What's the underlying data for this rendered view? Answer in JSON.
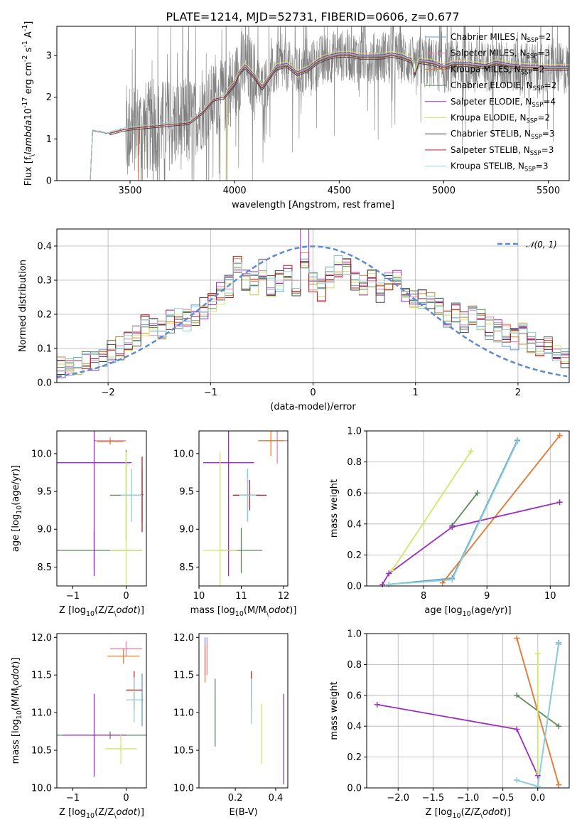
{
  "title": "PLATE=1214, MJD=52731, FIBERID=0606, z=0.677",
  "legend_models": [
    {
      "name": "Chabrier MILES, N$_{SSP}$=2",
      "text": "Chabrier MILES, N",
      "n": "2",
      "color": "#5f9fce"
    },
    {
      "name": "Salpeter MILES, N$_{SSP}$=3",
      "text": "Salpeter MILES, N",
      "n": "3",
      "color": "#ef80b7"
    },
    {
      "name": "Kroupa MILES, N$_{SSP}$=2",
      "text": "Kroupa MILES, N",
      "n": "2",
      "color": "#e07f32"
    },
    {
      "name": "Chabrier ELODIE, N$_{SSP}$=2",
      "text": "Chabrier ELODIE, N",
      "n": "2",
      "color": "#5a8a5a"
    },
    {
      "name": "Salpeter ELODIE, N$_{SSP}$=4",
      "text": "Salpeter ELODIE, N",
      "n": "4",
      "color": "#9b2ec0"
    },
    {
      "name": "Kroupa ELODIE, N$_{SSP}$=2",
      "text": "Kroupa ELODIE, N",
      "n": "2",
      "color": "#d4e664"
    },
    {
      "name": "Chabrier STELIB, N$_{SSP}$=3",
      "text": "Chabrier STELIB, N",
      "n": "3",
      "color": "#444444"
    },
    {
      "name": "Salpeter STELIB, N$_{SSP}$=3",
      "text": "Salpeter STELIB, N",
      "n": "3",
      "color": "#b42020"
    },
    {
      "name": "Kroupa STELIB, N$_{SSP}$=3",
      "text": "Kroupa STELIB, N",
      "n": "3",
      "color": "#8fd0d6"
    }
  ],
  "legend_sub": "SSP",
  "colors": {
    "data": "#808080",
    "grid": "#b0b0b0",
    "normal": "#5b8ad6"
  },
  "chart_data": [
    {
      "id": "spectrum",
      "type": "line",
      "xlabel": "wavelength [Angstrom, rest frame]",
      "ylabel": "Flux [f$_\\lambda$10$^{-17}$ erg cm$^{-2}$ s$^{-1}$ A$^{-1}$]",
      "xlim": [
        3150,
        5600
      ],
      "ylim": [
        0,
        3.7
      ],
      "xticks": [
        3500,
        4000,
        4500,
        5000,
        5500
      ],
      "yticks": [
        0,
        1,
        2,
        3
      ],
      "grid": false,
      "legend": "right",
      "data_series": {
        "name": "data",
        "color": "#808080",
        "x_range": [
          3310,
          5600
        ],
        "noisy_from": 3480
      },
      "model_continuum": {
        "x": [
          3200,
          3310,
          3320,
          3400,
          3450,
          3500,
          3600,
          3700,
          3780,
          3850,
          3900,
          3950,
          4000,
          4020,
          4050,
          4100,
          4130,
          4200,
          4250,
          4300,
          4350,
          4400,
          4450,
          4500,
          4550,
          4600,
          4650,
          4700,
          4750,
          4800,
          4850,
          4860,
          4880,
          4950,
          5000,
          5050,
          5100,
          5150,
          5200,
          5250,
          5300,
          5350,
          5400,
          5450,
          5500
        ],
        "y": [
          0,
          0,
          1.2,
          1.13,
          1.2,
          1.25,
          1.3,
          1.35,
          1.38,
          1.65,
          1.95,
          2.0,
          2.3,
          2.55,
          2.72,
          2.45,
          2.2,
          2.7,
          2.75,
          2.55,
          2.65,
          2.85,
          2.95,
          3.0,
          3.0,
          2.95,
          2.95,
          2.95,
          3.0,
          2.95,
          2.85,
          2.5,
          2.85,
          2.8,
          2.7,
          2.78,
          2.78,
          2.75,
          2.72,
          2.8,
          2.75,
          2.72,
          2.7,
          2.7,
          2.68
        ]
      },
      "model_starts": {
        "MILES": 3540,
        "ELODIE": 3960,
        "STELIB": 3310
      }
    },
    {
      "id": "residuals",
      "type": "line",
      "xlabel": "(data-model)/error",
      "ylabel": "Normed distribution",
      "xlim": [
        -2.5,
        2.5
      ],
      "ylim": [
        0,
        0.45
      ],
      "xticks": [
        -2,
        -1,
        0,
        1,
        2
      ],
      "yticks": [
        0.0,
        0.1,
        0.2,
        0.3,
        0.4
      ],
      "grid": true,
      "normal_curve": {
        "name": "$\\mathcal{N}(0,1)$",
        "label": "𝒩(0, 1)",
        "mean": 0,
        "std": 1
      },
      "hist_base": [
        0.04,
        0.04,
        0.05,
        0.06,
        0.07,
        0.08,
        0.09,
        0.1,
        0.12,
        0.14,
        0.17,
        0.16,
        0.15,
        0.18,
        0.19,
        0.18,
        0.2,
        0.22,
        0.24,
        0.26,
        0.28,
        0.35,
        0.3,
        0.29,
        0.33,
        0.28,
        0.3,
        0.32,
        0.27,
        0.36,
        0.3,
        0.27,
        0.31,
        0.34,
        0.35,
        0.3,
        0.28,
        0.3,
        0.27,
        0.29,
        0.3,
        0.26,
        0.25,
        0.25,
        0.23,
        0.22,
        0.19,
        0.2,
        0.18,
        0.2,
        0.18,
        0.16,
        0.15,
        0.14,
        0.13,
        0.14,
        0.12,
        0.11,
        0.1,
        0.08,
        0.07
      ],
      "hist_range": [
        -2.5,
        2.5
      ]
    },
    {
      "id": "z-vs-age",
      "type": "scatter",
      "xlabel": "Z [log$_{10}$(Z/Z$_\\odot$)]",
      "ylabel": "age  [log$_{10}$(age/yr)]",
      "xlim": [
        -1.3,
        0.38
      ],
      "ylim": [
        8.25,
        10.3
      ],
      "xticks": [
        -1,
        0
      ],
      "yticks": [
        8.5,
        9.0,
        9.5,
        10.0
      ],
      "grid": false,
      "points": [
        {
          "model": 0,
          "x": 0.3,
          "y": 9.45,
          "xerr": 0.02,
          "yerr": 0.35
        },
        {
          "model": 1,
          "x": -0.3,
          "y": 10.17,
          "xerr": 0.3,
          "yerr": 0.05
        },
        {
          "model": 2,
          "x": -0.3,
          "y": 10.16,
          "xerr": 0.25,
          "yerr": 0.03
        },
        {
          "model": 3,
          "x": 0.0,
          "y": 9.45,
          "xerr": 0.3,
          "yerr": 0.6
        },
        {
          "model": 3,
          "x": -0.6,
          "y": 8.72,
          "xerr": 0.9,
          "yerr": 0.25
        },
        {
          "model": 4,
          "x": -0.6,
          "y": 9.88,
          "xerr": 0.7,
          "yerr": 1.5
        },
        {
          "model": 5,
          "x": 0.0,
          "y": 8.72,
          "xerr": 0.3,
          "yerr": 1.3
        },
        {
          "model": 7,
          "x": 0.3,
          "y": 9.46,
          "xerr": 0.02,
          "yerr": 0.5
        },
        {
          "model": 8,
          "x": 0.1,
          "y": 9.45,
          "xerr": 0.2,
          "yerr": 0.35
        }
      ]
    },
    {
      "id": "mass-vs-age",
      "type": "scatter",
      "xlabel": "mass [log$_{10}$(M/M$_\\odot$)]",
      "ylabel": "",
      "xlim": [
        10.0,
        12.1
      ],
      "ylim": [
        8.25,
        10.3
      ],
      "xticks": [
        10,
        11,
        12
      ],
      "yticks": [
        8.5,
        9.0,
        9.5,
        10.0
      ],
      "grid": false,
      "points": [
        {
          "model": 0,
          "x": 11.15,
          "y": 9.45,
          "xerr": 0.3,
          "yerr": 0.35
        },
        {
          "model": 1,
          "x": 11.85,
          "y": 10.17,
          "xerr": 0.3,
          "yerr": 0.3
        },
        {
          "model": 2,
          "x": 11.7,
          "y": 10.17,
          "xerr": 0.3,
          "yerr": 0.2
        },
        {
          "model": 3,
          "x": 11.0,
          "y": 8.72,
          "xerr": 0.5,
          "yerr": 0.3
        },
        {
          "model": 4,
          "x": 10.7,
          "y": 9.88,
          "xerr": 0.6,
          "yerr": 1.5
        },
        {
          "model": 5,
          "x": 10.5,
          "y": 8.72,
          "xerr": 0.4,
          "yerr": 1.3
        },
        {
          "model": 7,
          "x": 11.2,
          "y": 9.45,
          "xerr": 0.4,
          "yerr": 0.2
        },
        {
          "model": 8,
          "x": 11.15,
          "y": 9.45,
          "xerr": 0.2,
          "yerr": 0.35
        }
      ]
    },
    {
      "id": "age-vs-weight",
      "type": "line",
      "xlabel": "age  [log$_{10}$(age/yr)]",
      "ylabel": "mass weight",
      "xlim": [
        7.1,
        10.3
      ],
      "ylim": [
        0,
        1.0
      ],
      "xticks": [
        8,
        9,
        10
      ],
      "yticks": [
        0.0,
        0.2,
        0.4,
        0.6,
        0.8,
        1.0
      ],
      "grid": true,
      "series": [
        {
          "model": 0,
          "x": [
            7.45,
            8.45,
            9.48
          ],
          "y": [
            0.01,
            0.05,
            0.94
          ]
        },
        {
          "model": 1,
          "x": [
            8.3,
            10.15
          ],
          "y": [
            0.02,
            0.97
          ]
        },
        {
          "model": 2,
          "x": [
            8.3,
            10.15
          ],
          "y": [
            0.02,
            0.97
          ]
        },
        {
          "model": 3,
          "x": [
            8.45,
            8.85
          ],
          "y": [
            0.39,
            0.6
          ]
        },
        {
          "model": 4,
          "x": [
            7.35,
            7.45,
            8.45,
            10.15
          ],
          "y": [
            0.01,
            0.08,
            0.38,
            0.54
          ]
        },
        {
          "model": 5,
          "x": [
            7.5,
            8.75
          ],
          "y": [
            0.1,
            0.87
          ]
        },
        {
          "model": 8,
          "x": [
            7.45,
            8.45,
            9.48
          ],
          "y": [
            0.01,
            0.04,
            0.93
          ]
        }
      ]
    },
    {
      "id": "z-vs-mass",
      "type": "scatter",
      "xlabel": "Z [log$_{10}$(Z/Z$_\\odot$)]",
      "ylabel": "mass [log$_{10}$(M/M$_\\odot$)]",
      "xlim": [
        -1.3,
        0.38
      ],
      "ylim": [
        10.0,
        12.05
      ],
      "xticks": [
        -1,
        0
      ],
      "yticks": [
        10.0,
        10.5,
        11.0,
        11.5,
        12.0
      ],
      "grid": false,
      "points": [
        {
          "model": 0,
          "x": 0.3,
          "y": 11.17,
          "xerr": 0.02,
          "yerr": 0.35
        },
        {
          "model": 1,
          "x": 0.0,
          "y": 11.85,
          "xerr": 0.3,
          "yerr": 0.1
        },
        {
          "model": 2,
          "x": -0.05,
          "y": 11.75,
          "xerr": 0.3,
          "yerr": 0.1
        },
        {
          "model": 3,
          "x": -0.3,
          "y": 10.7,
          "xerr": 1.0,
          "yerr": 0.05
        },
        {
          "model": 4,
          "x": -0.6,
          "y": 10.7,
          "xerr": 0.6,
          "yerr": 0.55
        },
        {
          "model": 5,
          "x": -0.1,
          "y": 10.52,
          "xerr": 0.3,
          "yerr": 0.2
        },
        {
          "model": 7,
          "x": 0.15,
          "y": 11.3,
          "xerr": 0.15,
          "yerr": 0.25
        },
        {
          "model": 8,
          "x": 0.15,
          "y": 11.17,
          "xerr": 0.15,
          "yerr": 0.3
        }
      ]
    },
    {
      "id": "ebv-vs-mass",
      "type": "scatter",
      "xlabel": "E(B-V)",
      "ylabel": "",
      "xlim": [
        0.02,
        0.46
      ],
      "ylim": [
        10.0,
        12.05
      ],
      "xticks": [
        0.2,
        0.4
      ],
      "yticks": [
        10.0,
        10.5,
        11.0,
        11.5,
        12.0
      ],
      "grid": false,
      "points": [
        {
          "model": 0,
          "x": 0.05,
          "y": 11.75,
          "xerr": 0,
          "yerr": 0.25
        },
        {
          "model": 1,
          "x": 0.06,
          "y": 11.75,
          "xerr": 0,
          "yerr": 0.25
        },
        {
          "model": 2,
          "x": 0.05,
          "y": 11.65,
          "xerr": 0,
          "yerr": 0.25
        },
        {
          "model": 3,
          "x": 0.1,
          "y": 11.0,
          "xerr": 0,
          "yerr": 0.45
        },
        {
          "model": 4,
          "x": 0.44,
          "y": 10.65,
          "xerr": 0,
          "yerr": 0.6
        },
        {
          "model": 5,
          "x": 0.33,
          "y": 10.72,
          "xerr": 0,
          "yerr": 0.4
        },
        {
          "model": 7,
          "x": 0.28,
          "y": 11.3,
          "xerr": 0,
          "yerr": 0.25
        },
        {
          "model": 8,
          "x": 0.28,
          "y": 11.15,
          "xerr": 0,
          "yerr": 0.3
        }
      ]
    },
    {
      "id": "z-vs-weight",
      "type": "line",
      "xlabel": "Z [log$_{10}$(Z/Z$_\\odot$)]",
      "ylabel": "mass weight",
      "xlim": [
        -2.45,
        0.45
      ],
      "ylim": [
        0,
        1.0
      ],
      "xticks": [
        -2.0,
        -1.5,
        -1.0,
        -0.5,
        0.0
      ],
      "yticks": [
        0.0,
        0.2,
        0.4,
        0.6,
        0.8,
        1.0
      ],
      "grid": true,
      "series": [
        {
          "model": 0,
          "x": [
            -0.3,
            0.0,
            0.3
          ],
          "y": [
            0.05,
            0.01,
            0.94
          ]
        },
        {
          "model": 1,
          "x": [
            -0.3,
            0.3
          ],
          "y": [
            0.97,
            0.02
          ]
        },
        {
          "model": 2,
          "x": [
            -0.3,
            0.3
          ],
          "y": [
            0.97,
            0.02
          ]
        },
        {
          "model": 3,
          "x": [
            -0.3,
            0.3
          ],
          "y": [
            0.6,
            0.4
          ]
        },
        {
          "model": 4,
          "x": [
            -2.3,
            -0.3,
            0.0
          ],
          "y": [
            0.54,
            0.38,
            0.08
          ]
        },
        {
          "model": 5,
          "x": [
            0.0,
            0.0
          ],
          "y": [
            0.1,
            0.87
          ]
        },
        {
          "model": 8,
          "x": [
            -0.3,
            0.0,
            0.3
          ],
          "y": [
            0.05,
            0.01,
            0.93
          ]
        }
      ]
    }
  ]
}
